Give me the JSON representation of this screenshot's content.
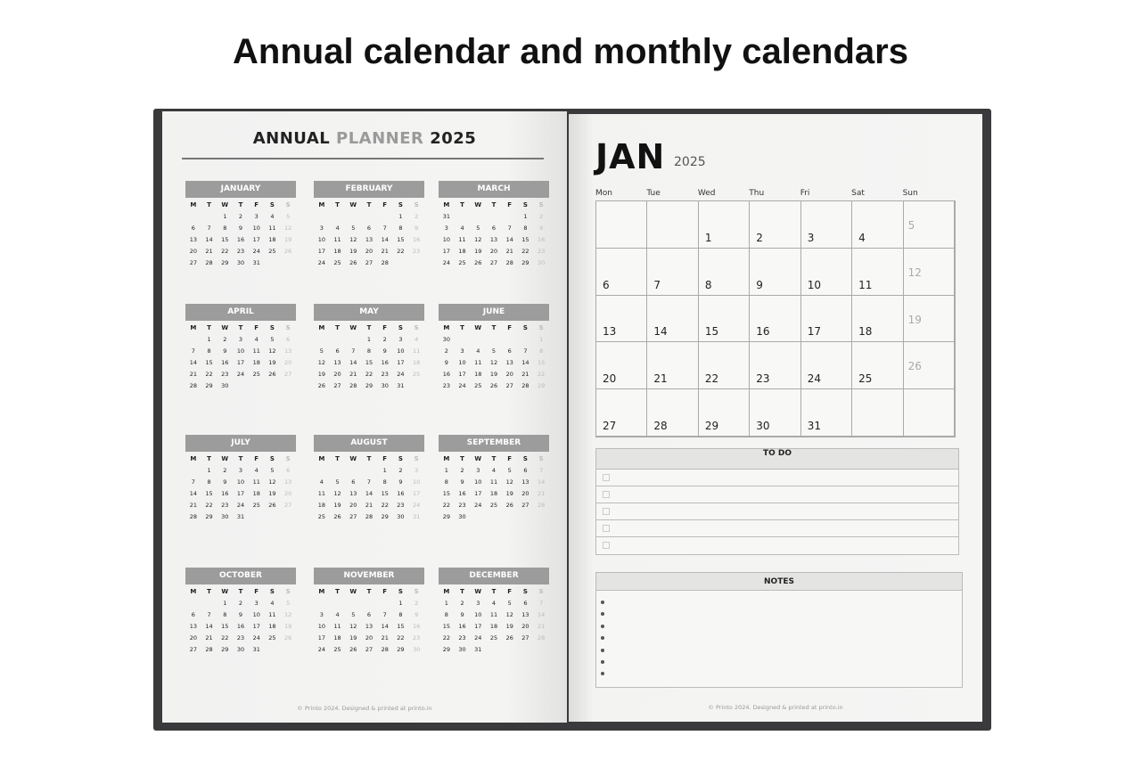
{
  "heading": "Annual calendar and monthly calendars",
  "annual": {
    "title_a": "ANNUAL",
    "title_b": "PLANNER",
    "title_c": "2025",
    "weekdays": [
      "M",
      "T",
      "W",
      "T",
      "F",
      "S",
      "S"
    ],
    "months": [
      {
        "name": "JANUARY",
        "offset": 2,
        "days": 31
      },
      {
        "name": "FEBRUARY",
        "offset": 5,
        "days": 28
      },
      {
        "name": "MARCH",
        "offset": 5,
        "days": 31
      },
      {
        "name": "APRIL",
        "offset": 1,
        "days": 30
      },
      {
        "name": "MAY",
        "offset": 3,
        "days": 31
      },
      {
        "name": "JUNE",
        "offset": 6,
        "days": 30
      },
      {
        "name": "JULY",
        "offset": 1,
        "days": 31
      },
      {
        "name": "AUGUST",
        "offset": 4,
        "days": 31
      },
      {
        "name": "SEPTEMBER",
        "offset": 0,
        "days": 30
      },
      {
        "name": "OCTOBER",
        "offset": 2,
        "days": 31
      },
      {
        "name": "NOVEMBER",
        "offset": 5,
        "days": 30
      },
      {
        "name": "DECEMBER",
        "offset": 0,
        "days": 31
      }
    ],
    "footer": "© Printo 2024. Designed & printed at printo.in"
  },
  "monthly": {
    "month": "JAN",
    "year": "2025",
    "weekdays": [
      "Mon",
      "Tue",
      "Wed",
      "Thu",
      "Fri",
      "Sat",
      "Sun"
    ],
    "offset": 2,
    "days": 31,
    "todo_title": "TO DO",
    "todo_rows": 5,
    "notes_title": "NOTES",
    "note_bullets": 7,
    "footer": "© Printo 2024. Designed & printed at printo.in"
  },
  "colors": {
    "cover": "#3a3a3c",
    "month_header": "#9c9c9c",
    "page": "#f3f3f2"
  }
}
